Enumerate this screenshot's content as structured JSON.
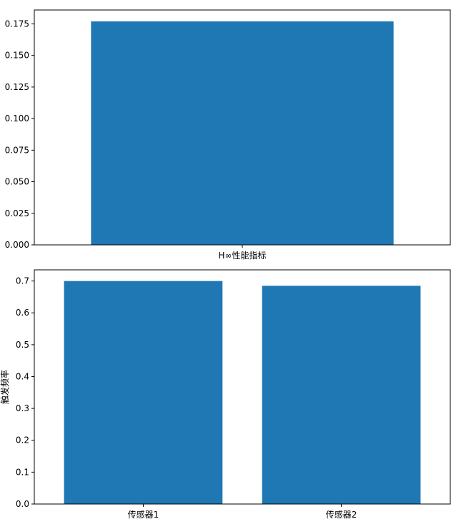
{
  "chart_data": [
    {
      "type": "bar",
      "categories": [
        "H∞性能指标"
      ],
      "values": [
        0.177
      ],
      "ylim": [
        0,
        0.186
      ],
      "yticks": [
        0.0,
        0.025,
        0.05,
        0.075,
        0.1,
        0.125,
        0.15,
        0.175
      ],
      "ytick_labels": [
        "0.000",
        "0.025",
        "0.050",
        "0.075",
        "0.100",
        "0.125",
        "0.150",
        "0.175"
      ],
      "xlabel": "",
      "ylabel": "",
      "title": "",
      "grid": false,
      "bar_color": "#1f77b4"
    },
    {
      "type": "bar",
      "categories": [
        "传感器1",
        "传感器2"
      ],
      "values": [
        0.7,
        0.685
      ],
      "ylim": [
        0,
        0.735
      ],
      "yticks": [
        0.0,
        0.1,
        0.2,
        0.3,
        0.4,
        0.5,
        0.6,
        0.7
      ],
      "ytick_labels": [
        "0.0",
        "0.1",
        "0.2",
        "0.3",
        "0.4",
        "0.5",
        "0.6",
        "0.7"
      ],
      "xlabel": "",
      "ylabel": "触发频率",
      "title": "",
      "grid": false,
      "bar_color": "#1f77b4"
    }
  ]
}
